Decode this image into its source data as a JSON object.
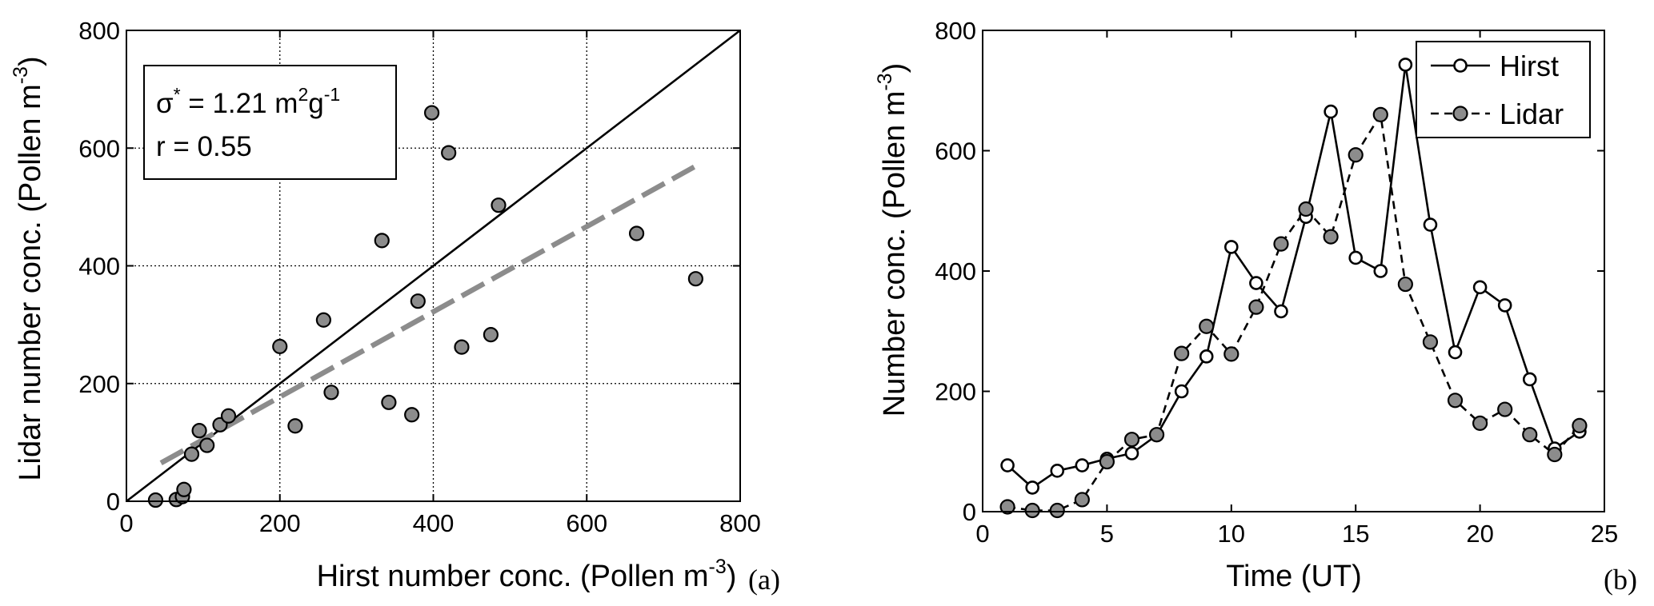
{
  "chart_data": [
    {
      "type": "scatter",
      "panel_label": "(a)",
      "xlabel": "Hirst number conc. (Pollen m",
      "xlabel_sup": "-3",
      "xlabel_end": ")",
      "ylabel": "Lidar number conc. (Pollen m",
      "ylabel_sup": "-3",
      "ylabel_end": ")",
      "xlim": [
        0,
        800
      ],
      "ylim": [
        0,
        800
      ],
      "xticks": [
        "0",
        "200",
        "400",
        "600",
        "800"
      ],
      "yticks": [
        "0",
        "200",
        "400",
        "600",
        "800"
      ],
      "grid": true,
      "annotation": {
        "line1_sigma": "σ",
        "line1_star": "*",
        "line1_value": " = 1.21 m",
        "line1_sup2": "2",
        "line1_g": "g",
        "line1_supm1": "-1",
        "line2": "r = 0.55"
      },
      "reference_line": {
        "x": [
          0,
          800
        ],
        "y": [
          0,
          800
        ]
      },
      "fit_line": {
        "x": [
          45,
          740
        ],
        "y": [
          65,
          568
        ]
      },
      "points": [
        {
          "x": 38,
          "y": 2
        },
        {
          "x": 65,
          "y": 3
        },
        {
          "x": 73,
          "y": 8
        },
        {
          "x": 75,
          "y": 20
        },
        {
          "x": 85,
          "y": 80
        },
        {
          "x": 95,
          "y": 120
        },
        {
          "x": 105,
          "y": 95
        },
        {
          "x": 122,
          "y": 130
        },
        {
          "x": 133,
          "y": 145
        },
        {
          "x": 200,
          "y": 263
        },
        {
          "x": 220,
          "y": 128
        },
        {
          "x": 257,
          "y": 308
        },
        {
          "x": 267,
          "y": 185
        },
        {
          "x": 333,
          "y": 443
        },
        {
          "x": 342,
          "y": 168
        },
        {
          "x": 372,
          "y": 147
        },
        {
          "x": 380,
          "y": 340
        },
        {
          "x": 398,
          "y": 660
        },
        {
          "x": 420,
          "y": 592
        },
        {
          "x": 437,
          "y": 262
        },
        {
          "x": 475,
          "y": 283
        },
        {
          "x": 485,
          "y": 503
        },
        {
          "x": 665,
          "y": 455
        },
        {
          "x": 742,
          "y": 378
        }
      ]
    },
    {
      "type": "line",
      "panel_label": "(b)",
      "xlabel": "Time (UT)",
      "ylabel": "Number conc. (Pollen m",
      "ylabel_sup": "-3",
      "ylabel_end": ")",
      "xlim": [
        0,
        25
      ],
      "ylim": [
        0,
        800
      ],
      "xticks": [
        "0",
        "5",
        "10",
        "15",
        "20",
        "25"
      ],
      "yticks": [
        "0",
        "200",
        "400",
        "600",
        "800"
      ],
      "grid": false,
      "legend_position": "top-right",
      "x": [
        1,
        2,
        3,
        4,
        5,
        6,
        7,
        8,
        9,
        10,
        11,
        12,
        13,
        14,
        15,
        16,
        17,
        18,
        19,
        20,
        21,
        22,
        23,
        24
      ],
      "series": [
        {
          "name": "Hirst",
          "style": "solid-open-circle",
          "values": [
            77,
            40,
            68,
            77,
            88,
            97,
            127,
            200,
            258,
            440,
            380,
            333,
            490,
            665,
            422,
            400,
            743,
            477,
            265,
            373,
            343,
            220,
            105,
            133
          ]
        },
        {
          "name": "Lidar",
          "style": "dashed-filled-circle",
          "values": [
            8,
            2,
            2,
            20,
            83,
            120,
            128,
            263,
            308,
            262,
            340,
            445,
            503,
            457,
            593,
            660,
            378,
            282,
            185,
            147,
            170,
            128,
            95,
            143
          ]
        }
      ]
    }
  ],
  "colors": {
    "axis": "#000000",
    "grid": "#000000",
    "marker_fill": "#8c8c8c",
    "fit_line": "#8c8c8c",
    "background": "#ffffff"
  }
}
